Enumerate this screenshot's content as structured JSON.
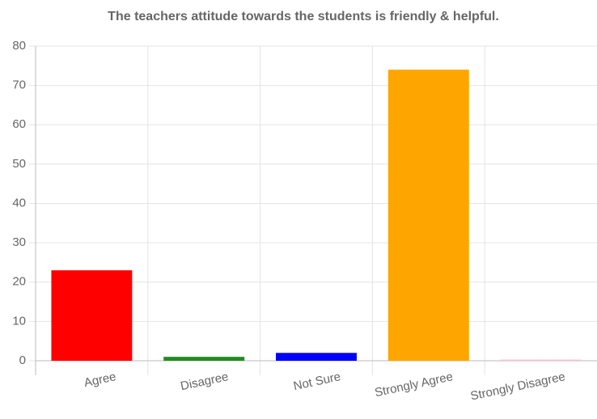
{
  "chart_data": {
    "type": "bar",
    "title": "The teachers attitude towards the students is friendly & helpful.",
    "categories": [
      "Agree",
      "Disagree",
      "Not Sure",
      "Strongly Agree",
      "Strongly Disagree"
    ],
    "values": [
      23,
      1,
      2,
      74,
      0.3
    ],
    "colors": [
      "#ff0000",
      "#228b22",
      "#0000ff",
      "#ffa500",
      "#ffc0cb"
    ],
    "ylim": [
      0,
      80
    ],
    "yticks": [
      0,
      10,
      20,
      30,
      40,
      50,
      60,
      70,
      80
    ],
    "grid": true
  }
}
